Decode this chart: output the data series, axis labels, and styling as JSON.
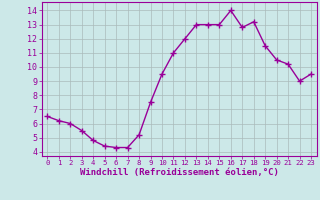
{
  "x": [
    0,
    1,
    2,
    3,
    4,
    5,
    6,
    7,
    8,
    9,
    10,
    11,
    12,
    13,
    14,
    15,
    16,
    17,
    18,
    19,
    20,
    21,
    22,
    23
  ],
  "y": [
    6.5,
    6.2,
    6.0,
    5.5,
    4.8,
    4.4,
    4.3,
    4.3,
    5.2,
    7.5,
    9.5,
    11.0,
    12.0,
    13.0,
    13.0,
    13.0,
    14.0,
    12.8,
    13.2,
    11.5,
    10.5,
    10.2,
    9.0,
    9.5
  ],
  "line_color": "#990099",
  "marker": "+",
  "marker_size": 4,
  "marker_linewidth": 1.0,
  "bg_color": "#cce8e8",
  "grid_color": "#aabbbb",
  "xlabel": "Windchill (Refroidissement éolien,°C)",
  "xlabel_color": "#990099",
  "ylabel_ticks": [
    4,
    5,
    6,
    7,
    8,
    9,
    10,
    11,
    12,
    13,
    14
  ],
  "xtick_labels": [
    "0",
    "1",
    "2",
    "3",
    "4",
    "5",
    "6",
    "7",
    "8",
    "9",
    "10",
    "11",
    "12",
    "13",
    "14",
    "15",
    "16",
    "17",
    "18",
    "19",
    "20",
    "21",
    "22",
    "23"
  ],
  "ylim": [
    3.7,
    14.6
  ],
  "xlim": [
    -0.5,
    23.5
  ],
  "tick_label_color": "#990099",
  "font_family": "monospace",
  "linewidth": 1.0
}
